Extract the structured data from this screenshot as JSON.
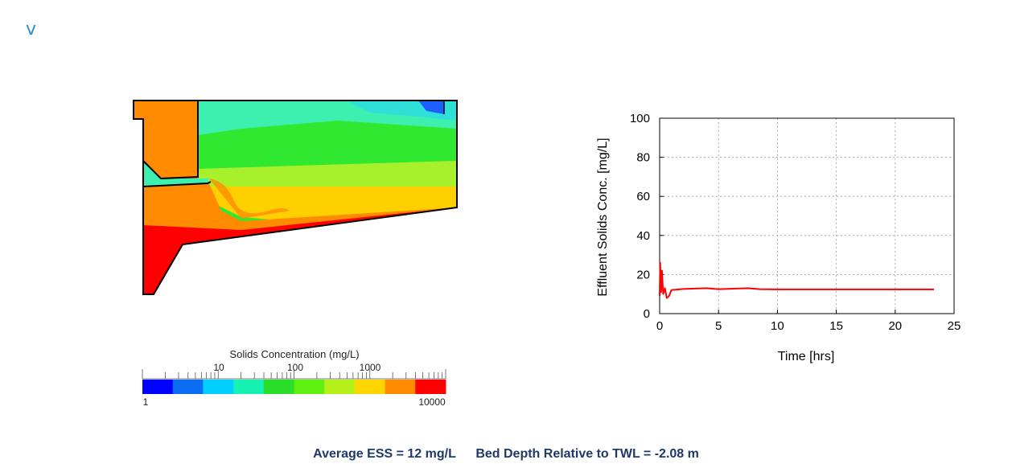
{
  "nav": {
    "toggle_glyph": "v"
  },
  "colorbar": {
    "title": "Solids Concentration (mg/L)",
    "upper_ticks": [
      "10",
      "100",
      "1000"
    ],
    "min_label": "1",
    "max_label": "10000",
    "colors": [
      "#0000ff",
      "#0a6cf0",
      "#00d0ff",
      "#17f0b3",
      "#2adf2a",
      "#5fef10",
      "#b6f01a",
      "#ffd500",
      "#ff8c00",
      "#ff0000"
    ]
  },
  "simulation": {
    "colors": {
      "outline": "#000000",
      "orange": "#ff8c00",
      "teal": "#3ef0b0",
      "cyan": "#2ee0d8",
      "green": "#30e830",
      "lime": "#a8f02c",
      "yellow": "#ffd000",
      "red": "#ff0000",
      "blue": "#1e60ff"
    }
  },
  "chart_data": {
    "type": "line",
    "xlabel": "Time [hrs]",
    "ylabel": "Effluent Solids Conc. [mg/L]",
    "xlim": [
      0,
      25
    ],
    "ylim": [
      0,
      100
    ],
    "xticks": [
      "0",
      "5",
      "10",
      "15",
      "20",
      "25"
    ],
    "yticks": [
      "0",
      "20",
      "40",
      "60",
      "80",
      "100"
    ],
    "grid": true,
    "series": [
      {
        "color": "#ff0000",
        "x": [
          0,
          0.05,
          0.12,
          0.2,
          0.3,
          0.45,
          0.6,
          0.8,
          1.0,
          2.0,
          4.0,
          5.0,
          7.5,
          8.5,
          10,
          15,
          20,
          23.3
        ],
        "y": [
          9,
          26,
          11,
          22,
          10,
          13,
          8,
          9,
          12,
          12.6,
          13,
          12.5,
          13,
          12.5,
          12.4,
          12.4,
          12.4,
          12.4
        ]
      }
    ]
  },
  "footer": {
    "avg_ess": "Average ESS = 12 mg/L",
    "bed_depth": "Bed Depth Relative to TWL = -2.08 m"
  }
}
